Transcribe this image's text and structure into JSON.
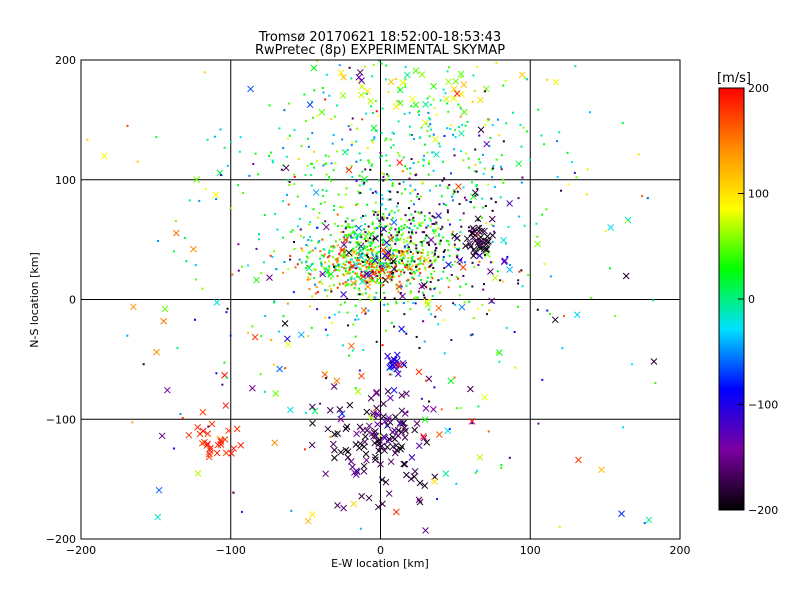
{
  "chart_data": {
    "type": "scatter",
    "title": "Tromsø 20170621 18:52:00-18:53:43",
    "subtitle": "RwPretec (8p) EXPERIMENTAL SKYMAP",
    "xlabel": "E-W location [km]",
    "ylabel": "N-S location [km]",
    "xlim": [
      -200,
      200
    ],
    "ylim": [
      -200,
      200
    ],
    "xticks": [
      -200,
      -100,
      0,
      100,
      200
    ],
    "yticks": [
      -200,
      -100,
      0,
      100,
      200
    ],
    "xtick_labels": [
      "−200",
      "−100",
      "0",
      "100",
      "200"
    ],
    "ytick_labels": [
      "−200",
      "−100",
      "0",
      "100",
      "200"
    ],
    "grid_lines": [
      -100,
      0,
      100
    ],
    "grid": true,
    "markers": [
      "x (large)",
      "dot (small)"
    ],
    "colorbar": {
      "unit": "[m/s]",
      "range": [
        -200,
        200
      ],
      "ticks": [
        -200,
        -100,
        0,
        100,
        200
      ],
      "tick_labels": [
        "−200",
        "−100",
        "0",
        "100",
        "200"
      ],
      "colors": [
        "#000000",
        "#7a00a0",
        "#0000ff",
        "#00e0ff",
        "#00ff00",
        "#ffff00",
        "#ff8c00",
        "#ff0000"
      ]
    },
    "clusters": [
      {
        "x": 0,
        "y": 35,
        "sx": 25,
        "sy": 18,
        "n": 480,
        "vmin": 10,
        "vmax": 70,
        "marker": "dot"
      },
      {
        "x": 0,
        "y": 80,
        "sx": 55,
        "sy": 55,
        "n": 420,
        "vmin": -60,
        "vmax": 60,
        "marker": "dot"
      },
      {
        "x": 20,
        "y": 150,
        "sx": 60,
        "sy": 40,
        "n": 160,
        "vmin": -40,
        "vmax": 110,
        "marker": "dot"
      },
      {
        "x": -10,
        "y": 28,
        "sx": 22,
        "sy": 10,
        "n": 160,
        "vmin": 120,
        "vmax": 200,
        "marker": "dot"
      },
      {
        "x": 30,
        "y": 50,
        "sx": 35,
        "sy": 35,
        "n": 200,
        "vmin": -200,
        "vmax": -150,
        "marker": "dot"
      },
      {
        "x": 65,
        "y": 49,
        "sx": 6,
        "sy": 6,
        "n": 40,
        "vmin": -200,
        "vmax": -170,
        "marker": "x"
      },
      {
        "x": -110,
        "y": -118,
        "sx": 8,
        "sy": 8,
        "n": 28,
        "vmin": 170,
        "vmax": 200,
        "marker": "x"
      },
      {
        "x": 0,
        "y": -120,
        "sx": 18,
        "sy": 25,
        "n": 110,
        "vmin": -200,
        "vmax": -160,
        "marker": "x"
      },
      {
        "x": 5,
        "y": -110,
        "sx": 15,
        "sy": 20,
        "n": 25,
        "vmin": -160,
        "vmax": -120,
        "marker": "x"
      },
      {
        "x": 10,
        "y": -55,
        "sx": 4,
        "sy": 4,
        "n": 16,
        "vmin": -120,
        "vmax": -90,
        "marker": "x"
      },
      {
        "x": 0,
        "y": 30,
        "sx": 18,
        "sy": 12,
        "n": 40,
        "vmin": -200,
        "vmax": 200,
        "marker": "x"
      },
      {
        "x": 20,
        "y": 180,
        "sx": 40,
        "sy": 15,
        "n": 40,
        "vmin": 20,
        "vmax": 120,
        "marker": "x"
      },
      {
        "x": 0,
        "y": 0,
        "sx": 90,
        "sy": 110,
        "n": 150,
        "vmin": -200,
        "vmax": 200,
        "marker": "x"
      },
      {
        "x": 0,
        "y": 0,
        "sx": 90,
        "sy": 100,
        "n": 220,
        "vmin": -200,
        "vmax": 200,
        "marker": "dot"
      }
    ]
  }
}
